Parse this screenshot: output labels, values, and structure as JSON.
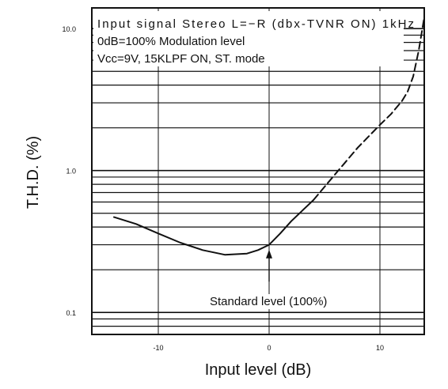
{
  "chart_data": {
    "type": "line",
    "title": "",
    "xlabel": "Input level (dB)",
    "ylabel": "T.H.D. (%)",
    "xlim": [
      -16,
      14
    ],
    "ylim": [
      0.07,
      14
    ],
    "yscale": "log",
    "grid": "horizontal log grid and major vertical lines",
    "x_ticks": [
      "-10",
      "0",
      "10"
    ],
    "y_ticks": [
      "0.1",
      "1.0",
      "10.0"
    ],
    "annotations": [
      "Input signal Stereo L=−R (dbx-TVNR ON) 1kHz",
      "0dB=100% Modulation level",
      "Vcc=9V, 15KLPF ON, ST. mode",
      "Standard level (100%)"
    ],
    "series": [
      {
        "style": "solid",
        "x": [
          -14,
          -12,
          -10,
          -8,
          -6,
          -4,
          -2,
          -1,
          0,
          1,
          2,
          4
        ],
        "y": [
          0.47,
          0.42,
          0.36,
          0.31,
          0.275,
          0.255,
          0.26,
          0.275,
          0.3,
          0.36,
          0.44,
          0.62
        ]
      },
      {
        "style": "dashed",
        "x": [
          4,
          6,
          8,
          10,
          11,
          12,
          12.5,
          13,
          13.5,
          14
        ],
        "y": [
          0.62,
          0.95,
          1.45,
          2.1,
          2.5,
          3.1,
          3.6,
          4.6,
          7.0,
          12.0
        ]
      }
    ]
  }
}
